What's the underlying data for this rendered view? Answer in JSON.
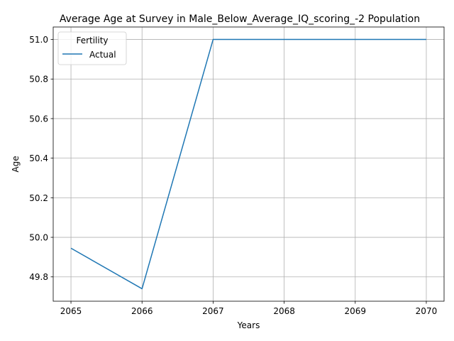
{
  "chart_data": {
    "type": "line",
    "title": "Average Age at Survey in Male_Below_Average_IQ_scoring_-2 Population",
    "xlabel": "Years",
    "ylabel": "Age",
    "x": [
      2065,
      2066,
      2067,
      2068,
      2069,
      2070
    ],
    "series": [
      {
        "name": "Actual",
        "color": "#1f77b4",
        "values": [
          49.945,
          49.74,
          51.0,
          51.0,
          51.0,
          51.0
        ]
      }
    ],
    "xlim": [
      2064.75,
      2070.25
    ],
    "ylim": [
      49.677,
      51.063
    ],
    "xticks": [
      "2065",
      "2066",
      "2067",
      "2068",
      "2069",
      "2070"
    ],
    "yticks": [
      "49.8",
      "50.0",
      "50.2",
      "50.4",
      "50.6",
      "50.8",
      "51.0"
    ],
    "grid": true,
    "legend": {
      "title": "Fertility",
      "placement": "upper left"
    }
  }
}
